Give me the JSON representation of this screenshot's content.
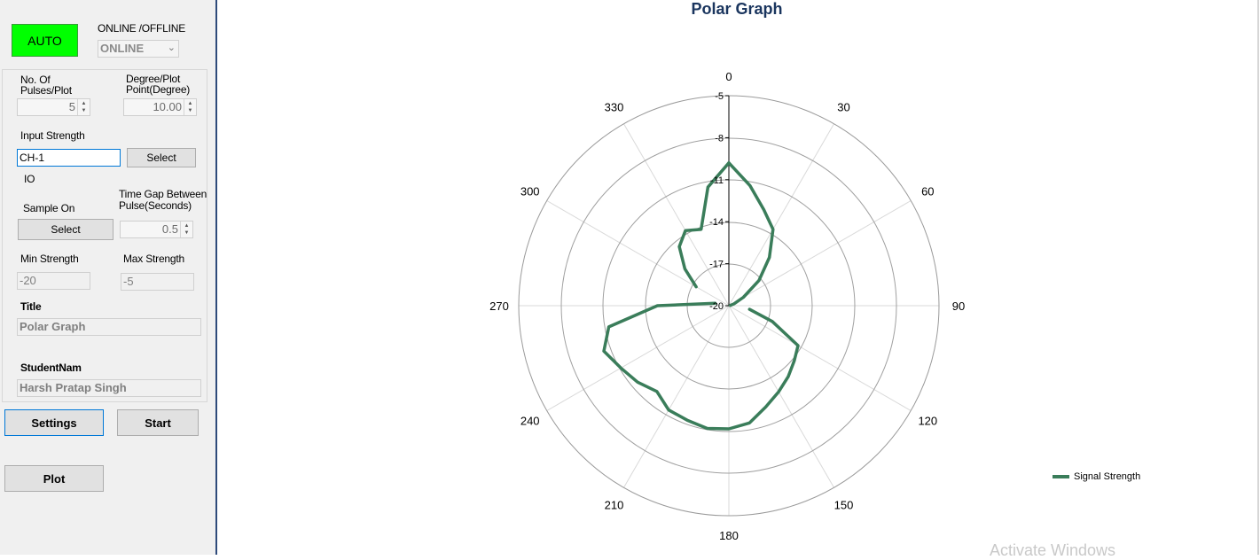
{
  "left_panel": {
    "auto_button": "AUTO",
    "mode_label": "ONLINE /OFFLINE",
    "mode_select_value": "ONLINE",
    "pulses_label_line1": "No. Of",
    "pulses_label_line2": "Pulses/Plot",
    "pulses_value": "5",
    "degree_label_line1": "Degree/Plot",
    "degree_label_line2": "Point(Degree)",
    "degree_value": "10.00",
    "input_strength_label": "Input Strength",
    "input_strength_value": "CH-1",
    "input_select_button": "Select",
    "io_label": "IO",
    "sample_on_label": "Sample On",
    "time_gap_label_line1": "Time Gap Between",
    "time_gap_label_line2": "Pulse(Seconds)",
    "sample_select_button": "Select",
    "time_gap_value": "0.5",
    "min_strength_label": "Min Strength",
    "max_strength_label": "Max Strength",
    "min_strength_value": "-20",
    "max_strength_value": "-5",
    "title_label": "Title",
    "title_value": "Polar Graph",
    "student_label": "StudentNam",
    "student_value": "Harsh Pratap Singh",
    "settings_button": "Settings",
    "start_button": "Start",
    "plot_button": "Plot"
  },
  "chart_data": {
    "type": "polar-line",
    "title": "Polar Graph",
    "angle_ticks": [
      "0",
      "30",
      "60",
      "90",
      "120",
      "150",
      "180",
      "210",
      "240",
      "270",
      "300",
      "330"
    ],
    "radial_ticks": [
      "-5",
      "-8",
      "-11",
      "-14",
      "-17",
      "-20"
    ],
    "r_range": [
      -20,
      -5
    ],
    "series": [
      {
        "name": "Signal Strength",
        "color": "#3a7d5a",
        "angles": [
          0,
          10,
          20,
          30,
          40,
          50,
          60,
          70,
          80,
          90,
          100,
          110,
          120,
          130,
          140,
          150,
          160,
          170,
          180,
          190,
          200,
          210,
          220,
          230,
          240,
          250,
          260,
          270,
          280,
          290,
          300,
          310,
          320,
          330,
          340,
          350,
          360
        ],
        "values": [
          -9.8,
          -11.3,
          -12.7,
          -13.7,
          -15.5,
          -17.2,
          -18.8,
          -19.6,
          -19.9,
          null,
          -18.5,
          -16.7,
          -14.3,
          -13.9,
          -13.4,
          -12.9,
          -12.3,
          -11.5,
          -11.2,
          -11.1,
          -11.3,
          -11.4,
          -12.0,
          -11.5,
          -11.1,
          -10.5,
          -11.3,
          -14.9,
          -19.0,
          null,
          -17.3,
          -15.9,
          -14.5,
          -13.8,
          -14.2,
          -11.4,
          -9.8
        ]
      }
    ],
    "legend_position": "right"
  },
  "watermark": "Activate Windows"
}
